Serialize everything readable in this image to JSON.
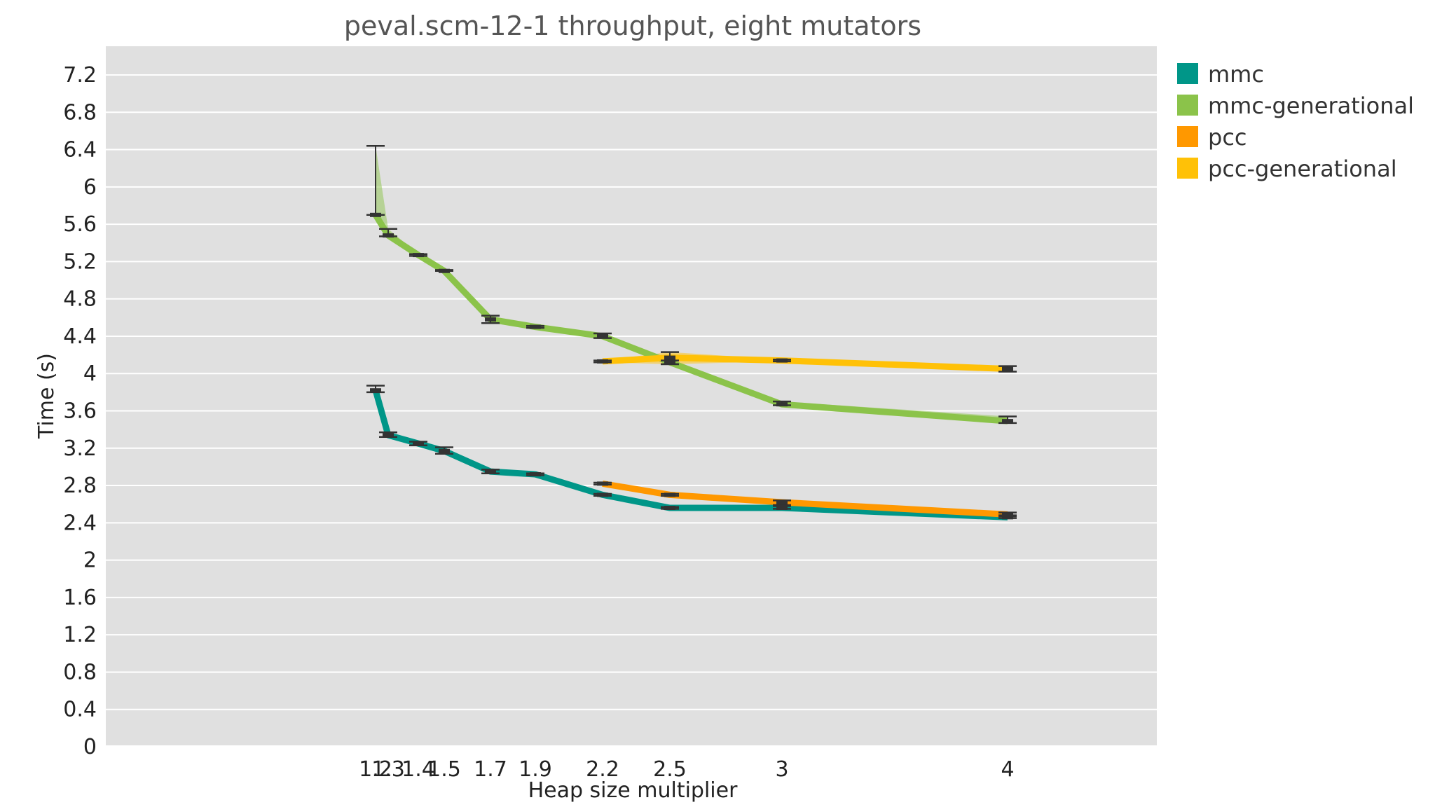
{
  "chart_data": {
    "type": "line",
    "title": "peval.scm-12-1 throughput, eight mutators",
    "xlabel": "Heap size multiplier",
    "ylabel": "Time (s)",
    "xlim": [
      0,
      4.7
    ],
    "ylim": [
      0,
      7.2
    ],
    "xticks": [
      1.2,
      1.3,
      1.4,
      1.5,
      1.7,
      1.9,
      2.2,
      2.5,
      3,
      4
    ],
    "xtick_labels": [
      "1.2",
      "1.3",
      "1.4",
      "1.5",
      "1.7",
      "1.9",
      "2.2",
      "2.5",
      "3",
      "4"
    ],
    "yticks": [
      0,
      0.4,
      0.8,
      1.2,
      1.6,
      2,
      2.4,
      2.8,
      3.2,
      3.6,
      4,
      4.4,
      4.8,
      5.2,
      5.6,
      6,
      6.4,
      6.8,
      7.2
    ],
    "ytick_labels": [
      "0",
      "0.4",
      "0.8",
      "1.2",
      "1.6",
      "2",
      "2.4",
      "2.8",
      "3.2",
      "3.6",
      "4",
      "4.4",
      "4.8",
      "5.2",
      "5.6",
      "6",
      "6.4",
      "6.8",
      "7.2"
    ],
    "grid": true,
    "legend_position": "right",
    "series": [
      {
        "name": "mmc",
        "color": "#009688",
        "x": [
          1.2,
          1.3,
          1.4,
          1.5,
          1.7,
          1.9,
          2.2,
          2.5,
          3,
          4
        ],
        "y": [
          3.82,
          3.34,
          3.25,
          3.17,
          2.95,
          2.92,
          2.7,
          2.56,
          2.56,
          2.46
        ],
        "y_min": [
          3.8,
          3.32,
          3.23,
          3.14,
          2.93,
          2.91,
          2.69,
          2.55,
          2.55,
          2.45
        ],
        "y_max": [
          3.87,
          3.37,
          3.27,
          3.21,
          2.97,
          2.93,
          2.71,
          2.57,
          2.58,
          2.48
        ]
      },
      {
        "name": "mmc-generational",
        "color": "#8bc34a",
        "x": [
          1.2,
          1.3,
          1.4,
          1.5,
          1.7,
          1.9,
          2.2,
          2.5,
          3,
          4
        ],
        "y": [
          5.7,
          5.48,
          5.27,
          5.1,
          4.58,
          4.5,
          4.4,
          4.12,
          3.67,
          3.49
        ],
        "y_min": [
          5.7,
          5.47,
          5.26,
          5.1,
          4.54,
          4.49,
          4.38,
          4.1,
          3.66,
          3.47
        ],
        "y_max": [
          6.44,
          5.55,
          5.28,
          5.11,
          4.62,
          4.51,
          4.43,
          4.14,
          3.7,
          3.54
        ]
      },
      {
        "name": "pcc",
        "color": "#ff9800",
        "x": [
          2.2,
          2.5,
          3,
          4
        ],
        "y": [
          2.82,
          2.7,
          2.62,
          2.49
        ],
        "y_min": [
          2.81,
          2.69,
          2.59,
          2.47
        ],
        "y_max": [
          2.83,
          2.71,
          2.64,
          2.51
        ]
      },
      {
        "name": "pcc-generational",
        "color": "#ffc107",
        "x": [
          2.2,
          2.5,
          3,
          4
        ],
        "y": [
          4.13,
          4.17,
          4.14,
          4.05
        ],
        "y_min": [
          4.12,
          4.1,
          4.13,
          4.02
        ],
        "y_max": [
          4.14,
          4.23,
          4.15,
          4.08
        ]
      }
    ]
  }
}
